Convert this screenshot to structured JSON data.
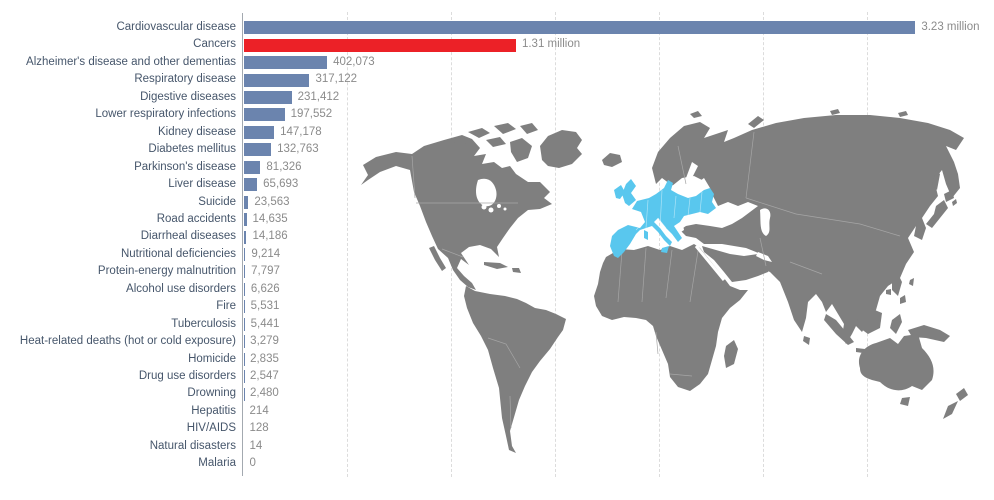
{
  "chart_data": {
    "type": "bar",
    "orientation": "horizontal",
    "title": "",
    "xlabel": "",
    "ylabel": "",
    "unit": "deaths",
    "categories": [
      "Cardiovascular disease",
      "Cancers",
      "Alzheimer's disease and other dementias",
      "Respiratory disease",
      "Digestive diseases",
      "Lower respiratory infections",
      "Kidney disease",
      "Diabetes mellitus",
      "Parkinson's disease",
      "Liver disease",
      "Suicide",
      "Road accidents",
      "Diarrheal diseases",
      "Nutritional deficiencies",
      "Protein-energy malnutrition",
      "Alcohol use disorders",
      "Fire",
      "Tuberculosis",
      "Heat-related deaths (hot or cold exposure)",
      "Homicide",
      "Drug use disorders",
      "Drowning",
      "Hepatitis",
      "HIV/AIDS",
      "Natural disasters",
      "Malaria"
    ],
    "values": [
      3230000,
      1310000,
      402073,
      317122,
      231412,
      197552,
      147178,
      132763,
      81326,
      65693,
      23563,
      14635,
      14186,
      9214,
      7797,
      6626,
      5531,
      5441,
      3279,
      2835,
      2547,
      2480,
      214,
      128,
      14,
      0
    ],
    "value_labels": [
      "3.23 million",
      "1.31 million",
      "402,073",
      "317,122",
      "231,412",
      "197,552",
      "147,178",
      "132,763",
      "81,326",
      "65,693",
      "23,563",
      "14,635",
      "14,186",
      "9,214",
      "7,797",
      "6,626",
      "5,531",
      "5,441",
      "3,279",
      "2,835",
      "2,547",
      "2,480",
      "214",
      "128",
      "14",
      "0"
    ],
    "highlight_category": "Cancers",
    "xlim": [
      0,
      3250000
    ],
    "gridline_values": [
      500000,
      1000000,
      1500000,
      2000000,
      2500000,
      3000000
    ],
    "grid": true,
    "legend": "none",
    "colors": {
      "bar": "#6b84ae",
      "highlight": "#ec2127",
      "axis": "#a3a9b0",
      "gridline": "#dcdcdc",
      "label": "#46566b",
      "value": "#8b8b8b"
    }
  },
  "map": {
    "highlight_region": "Europe",
    "colors": {
      "land": "#7f7f7f",
      "border": "#a6a6a6",
      "highlight": "#59c7ee"
    }
  }
}
